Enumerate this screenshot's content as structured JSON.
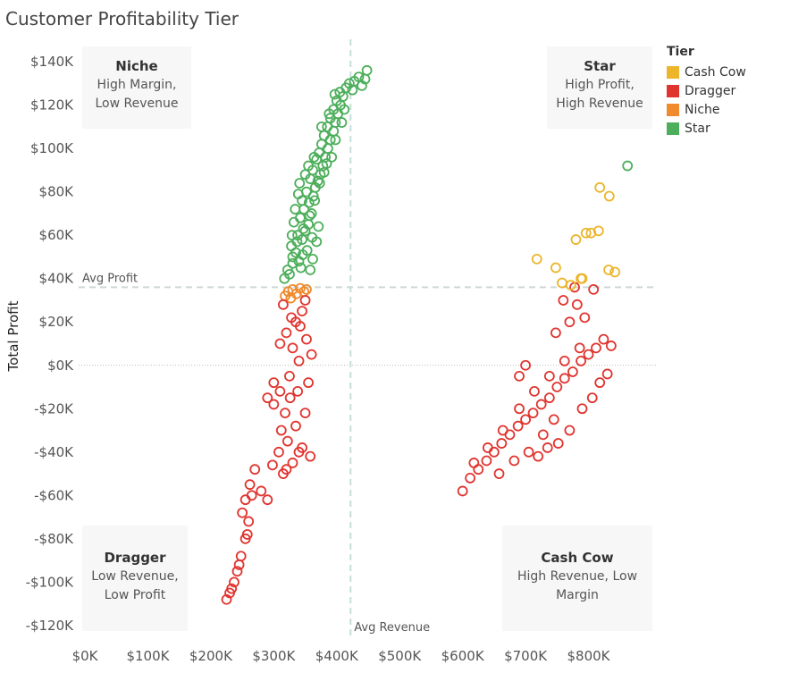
{
  "title": "Customer Profitability Tier",
  "legend": {
    "title": "Tier",
    "items": [
      {
        "label": "Cash Cow",
        "color": "#ECB52A"
      },
      {
        "label": "Dragger",
        "color": "#E0342F"
      },
      {
        "label": "Niche",
        "color": "#EF8A2D"
      },
      {
        "label": "Star",
        "color": "#4DAE5B"
      }
    ]
  },
  "quadrants": {
    "niche": {
      "title": "Niche",
      "line1": "High Margin,",
      "line2": "Low Revenue"
    },
    "star": {
      "title": "Star",
      "line1": "High Profit,",
      "line2": "High Revenue"
    },
    "dragger": {
      "title": "Dragger",
      "line1": "Low Revenue,",
      "line2": "Low Profit"
    },
    "cashcow": {
      "title": "Cash Cow",
      "line1": "High Revenue, Low",
      "line2": "Margin"
    }
  },
  "chart_data": {
    "type": "scatter",
    "title": "Customer Profitability Tier",
    "xlabel": "",
    "ylabel": "Total Profit",
    "xlim": [
      -10000,
      910000
    ],
    "ylim": [
      -125000,
      152000
    ],
    "x_ticks": [
      {
        "v": 0,
        "label": "$0K"
      },
      {
        "v": 100000,
        "label": "$100K"
      },
      {
        "v": 200000,
        "label": "$200K"
      },
      {
        "v": 300000,
        "label": "$300K"
      },
      {
        "v": 400000,
        "label": "$400K"
      },
      {
        "v": 500000,
        "label": "$500K"
      },
      {
        "v": 600000,
        "label": "$600K"
      },
      {
        "v": 700000,
        "label": "$700K"
      },
      {
        "v": 800000,
        "label": "$800K"
      }
    ],
    "y_ticks": [
      {
        "v": 140000,
        "label": "$140K"
      },
      {
        "v": 120000,
        "label": "$120K"
      },
      {
        "v": 100000,
        "label": "$100K"
      },
      {
        "v": 80000,
        "label": "$80K"
      },
      {
        "v": 60000,
        "label": "$60K"
      },
      {
        "v": 40000,
        "label": "$40K"
      },
      {
        "v": 20000,
        "label": "$20K"
      },
      {
        "v": 0,
        "label": "$0K"
      },
      {
        "v": -20000,
        "label": "-$20K"
      },
      {
        "v": -40000,
        "label": "-$40K"
      },
      {
        "v": -60000,
        "label": "-$60K"
      },
      {
        "v": -80000,
        "label": "-$80K"
      },
      {
        "v": -100000,
        "label": "-$100K"
      },
      {
        "v": -120000,
        "label": "-$120K"
      }
    ],
    "reference_lines": {
      "avg_profit": {
        "value": 36000,
        "label": "Avg Profit"
      },
      "avg_revenue": {
        "value": 422000,
        "label": "Avg Revenue"
      }
    },
    "grid": false,
    "legend_position": "right",
    "series": [
      {
        "name": "Star",
        "color": "#4DAE5B",
        "points": [
          [
            317000,
            40000
          ],
          [
            325000,
            42000
          ],
          [
            330000,
            47000
          ],
          [
            335000,
            52000
          ],
          [
            328000,
            55000
          ],
          [
            340000,
            48000
          ],
          [
            345000,
            58000
          ],
          [
            350000,
            62000
          ],
          [
            338000,
            60000
          ],
          [
            355000,
            65000
          ],
          [
            342000,
            68000
          ],
          [
            360000,
            70000
          ],
          [
            348000,
            72000
          ],
          [
            356000,
            75000
          ],
          [
            363000,
            78000
          ],
          [
            352000,
            80000
          ],
          [
            366000,
            82000
          ],
          [
            370000,
            85000
          ],
          [
            358000,
            86000
          ],
          [
            374000,
            88000
          ],
          [
            362000,
            90000
          ],
          [
            378000,
            92000
          ],
          [
            368000,
            95000
          ],
          [
            382000,
            96000
          ],
          [
            372000,
            98000
          ],
          [
            386000,
            100000
          ],
          [
            376000,
            102000
          ],
          [
            390000,
            104000
          ],
          [
            380000,
            106000
          ],
          [
            395000,
            108000
          ],
          [
            385000,
            110000
          ],
          [
            398000,
            112000
          ],
          [
            390000,
            114000
          ],
          [
            402000,
            116000
          ],
          [
            395000,
            118000
          ],
          [
            406000,
            120000
          ],
          [
            400000,
            122000
          ],
          [
            410000,
            124000
          ],
          [
            405000,
            126000
          ],
          [
            415000,
            128000
          ],
          [
            420000,
            130000
          ],
          [
            428000,
            131000
          ],
          [
            435000,
            133000
          ],
          [
            445000,
            132000
          ],
          [
            448000,
            136000
          ],
          [
            440000,
            129000
          ],
          [
            425000,
            127000
          ],
          [
            412000,
            118000
          ],
          [
            398000,
            104000
          ],
          [
            384000,
            93000
          ],
          [
            373000,
            84000
          ],
          [
            365000,
            76000
          ],
          [
            357000,
            69000
          ],
          [
            347000,
            63000
          ],
          [
            337000,
            57000
          ],
          [
            330000,
            50000
          ],
          [
            322000,
            44000
          ],
          [
            343000,
            45000
          ],
          [
            353000,
            53000
          ],
          [
            361000,
            59000
          ],
          [
            345000,
            76000
          ],
          [
            332000,
            66000
          ],
          [
            350000,
            88000
          ],
          [
            339000,
            79000
          ],
          [
            334000,
            72000
          ],
          [
            346000,
            51000
          ],
          [
            358000,
            44000
          ],
          [
            362000,
            49000
          ],
          [
            368000,
            57000
          ],
          [
            371000,
            64000
          ],
          [
            364000,
            96000
          ],
          [
            376000,
            110000
          ],
          [
            388000,
            116000
          ],
          [
            380000,
            89000
          ],
          [
            392000,
            96000
          ],
          [
            397000,
            125000
          ],
          [
            408000,
            112000
          ],
          [
            355000,
            92000
          ],
          [
            341000,
            84000
          ],
          [
            329000,
            60000
          ]
        ]
      },
      {
        "name": "Niche",
        "color": "#EF8A2D",
        "points": [
          [
            318000,
            32000
          ],
          [
            323000,
            34000
          ],
          [
            330000,
            35000
          ],
          [
            336000,
            33000
          ],
          [
            342000,
            35500
          ],
          [
            348000,
            34000
          ],
          [
            327000,
            31000
          ],
          [
            352000,
            35000
          ]
        ]
      },
      {
        "name": "Dragger",
        "color": "#E0342F",
        "points": [
          [
            350000,
            30000
          ],
          [
            345000,
            25000
          ],
          [
            335000,
            20000
          ],
          [
            320000,
            15000
          ],
          [
            330000,
            8000
          ],
          [
            340000,
            2000
          ],
          [
            325000,
            -5000
          ],
          [
            310000,
            -12000
          ],
          [
            300000,
            -18000
          ],
          [
            318000,
            -22000
          ],
          [
            335000,
            -28000
          ],
          [
            322000,
            -35000
          ],
          [
            308000,
            -40000
          ],
          [
            298000,
            -46000
          ],
          [
            315000,
            -50000
          ],
          [
            330000,
            -45000
          ],
          [
            345000,
            -38000
          ],
          [
            350000,
            -22000
          ],
          [
            355000,
            -8000
          ],
          [
            360000,
            5000
          ],
          [
            352000,
            12000
          ],
          [
            342000,
            18000
          ],
          [
            338000,
            -12000
          ],
          [
            312000,
            -30000
          ],
          [
            326000,
            -15000
          ],
          [
            300000,
            -8000
          ],
          [
            290000,
            -15000
          ],
          [
            270000,
            -48000
          ],
          [
            262000,
            -55000
          ],
          [
            255000,
            -62000
          ],
          [
            250000,
            -68000
          ],
          [
            260000,
            -72000
          ],
          [
            255000,
            -80000
          ],
          [
            248000,
            -88000
          ],
          [
            242000,
            -95000
          ],
          [
            237000,
            -100000
          ],
          [
            230000,
            -105000
          ],
          [
            225000,
            -108000
          ],
          [
            233000,
            -103000
          ],
          [
            245000,
            -92000
          ],
          [
            258000,
            -78000
          ],
          [
            265000,
            -60000
          ],
          [
            280000,
            -58000
          ],
          [
            290000,
            -62000
          ],
          [
            320000,
            -48000
          ],
          [
            340000,
            -40000
          ],
          [
            358000,
            -42000
          ],
          [
            310000,
            10000
          ],
          [
            315000,
            28000
          ],
          [
            328000,
            22000
          ],
          [
            600000,
            -58000
          ],
          [
            612000,
            -52000
          ],
          [
            625000,
            -48000
          ],
          [
            638000,
            -44000
          ],
          [
            650000,
            -40000
          ],
          [
            662000,
            -36000
          ],
          [
            675000,
            -32000
          ],
          [
            688000,
            -28000
          ],
          [
            700000,
            -25000
          ],
          [
            712000,
            -22000
          ],
          [
            725000,
            -18000
          ],
          [
            738000,
            -15000
          ],
          [
            750000,
            -10000
          ],
          [
            762000,
            -6000
          ],
          [
            775000,
            -3000
          ],
          [
            788000,
            2000
          ],
          [
            800000,
            5000
          ],
          [
            812000,
            8000
          ],
          [
            824000,
            12000
          ],
          [
            836000,
            9000
          ],
          [
            618000,
            -45000
          ],
          [
            640000,
            -38000
          ],
          [
            664000,
            -30000
          ],
          [
            690000,
            -20000
          ],
          [
            714000,
            -12000
          ],
          [
            738000,
            -5000
          ],
          [
            762000,
            2000
          ],
          [
            786000,
            8000
          ],
          [
            748000,
            15000
          ],
          [
            770000,
            20000
          ],
          [
            782000,
            28000
          ],
          [
            794000,
            22000
          ],
          [
            760000,
            30000
          ],
          [
            778000,
            36000
          ],
          [
            808000,
            35000
          ],
          [
            745000,
            -25000
          ],
          [
            728000,
            -32000
          ],
          [
            705000,
            -40000
          ],
          [
            682000,
            -44000
          ],
          [
            658000,
            -50000
          ],
          [
            720000,
            -42000
          ],
          [
            735000,
            -38000
          ],
          [
            752000,
            -36000
          ],
          [
            770000,
            -30000
          ],
          [
            790000,
            -20000
          ],
          [
            806000,
            -15000
          ],
          [
            818000,
            -8000
          ],
          [
            830000,
            -4000
          ],
          [
            700000,
            0
          ],
          [
            690000,
            -5000
          ]
        ]
      },
      {
        "name": "Cash Cow",
        "color": "#ECB52A",
        "points": [
          [
            718000,
            49000
          ],
          [
            748000,
            45000
          ],
          [
            758000,
            38000
          ],
          [
            772000,
            37000
          ],
          [
            788000,
            40000
          ],
          [
            780000,
            58000
          ],
          [
            796000,
            61000
          ],
          [
            804000,
            61000
          ],
          [
            816000,
            62000
          ],
          [
            832000,
            44000
          ],
          [
            842000,
            43000
          ],
          [
            818000,
            82000
          ],
          [
            833000,
            78000
          ],
          [
            790000,
            40000
          ]
        ]
      },
      {
        "name": "Star",
        "color": "#4DAE5B",
        "points": [
          [
            862000,
            92000
          ]
        ]
      }
    ]
  }
}
